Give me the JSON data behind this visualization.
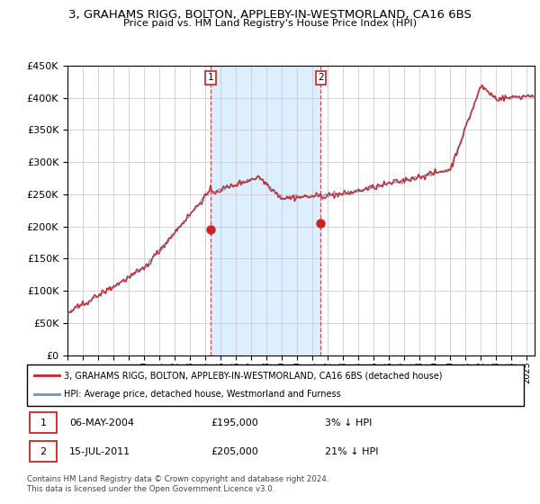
{
  "title": "3, GRAHAMS RIGG, BOLTON, APPLEBY-IN-WESTMORLAND, CA16 6BS",
  "subtitle": "Price paid vs. HM Land Registry's House Price Index (HPI)",
  "hpi_label": "HPI: Average price, detached house, Westmorland and Furness",
  "property_label": "3, GRAHAMS RIGG, BOLTON, APPLEBY-IN-WESTMORLAND, CA16 6BS (detached house)",
  "footer1": "Contains HM Land Registry data © Crown copyright and database right 2024.",
  "footer2": "This data is licensed under the Open Government Licence v3.0.",
  "transaction1_date": "06-MAY-2004",
  "transaction1_price": "£195,000",
  "transaction1_hpi": "3% ↓ HPI",
  "transaction1_year": 2004.35,
  "transaction1_value": 195000,
  "transaction2_date": "15-JUL-2011",
  "transaction2_price": "£205,000",
  "transaction2_hpi": "21% ↓ HPI",
  "transaction2_year": 2011.54,
  "transaction2_value": 205000,
  "ylim": [
    0,
    450000
  ],
  "xlim_start": 1995,
  "xlim_end": 2025.5,
  "hpi_color": "#6699cc",
  "price_color": "#cc2222",
  "vline_color": "#cc3333",
  "highlight_color": "#ddeeff",
  "grid_color": "#cccccc",
  "background_color": "#ffffff"
}
